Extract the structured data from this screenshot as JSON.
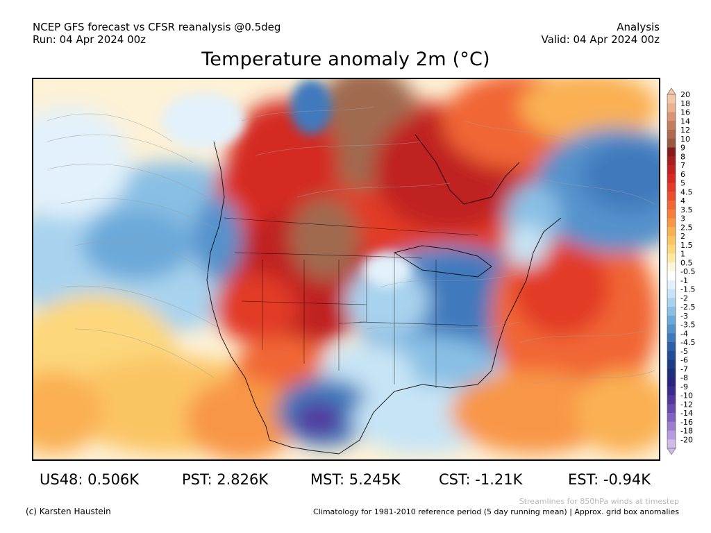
{
  "header": {
    "line1_left": "NCEP GFS forecast vs CFSR reanalysis @0.5deg",
    "line2_left": "Run: 04 Apr 2024 00z",
    "line1_right": "Analysis",
    "line2_right": "Valid: 04 Apr 2024 00z"
  },
  "title": "Temperature anomaly 2m (°C)",
  "colorbar": {
    "unit": "°C",
    "levels": [
      "20",
      "18",
      "16",
      "14",
      "12",
      "10",
      "9",
      "8",
      "7",
      "6",
      "5",
      "4.5",
      "4",
      "3.5",
      "3",
      "2.5",
      "2",
      "1.5",
      "1",
      "0.5",
      "-0.5",
      "-1",
      "-1.5",
      "-2",
      "-2.5",
      "-3",
      "-3.5",
      "-4",
      "-4.5",
      "-5",
      "-6",
      "-7",
      "-8",
      "-9",
      "-10",
      "-12",
      "-14",
      "-16",
      "-18",
      "-20"
    ],
    "colors": [
      "#f3c6a8",
      "#eab08f",
      "#d99473",
      "#c47c5e",
      "#ad6a4e",
      "#9a5a40",
      "#8a1a1a",
      "#a61e1e",
      "#c02222",
      "#d42a22",
      "#e23b28",
      "#ea4f2c",
      "#f16634",
      "#f57e3c",
      "#f89646",
      "#fab052",
      "#fbc463",
      "#fcd77c",
      "#fde9a4",
      "#fdf6dc",
      "#ffffff",
      "#e2f1fb",
      "#c6e4f5",
      "#a8d3ee",
      "#89bfe4",
      "#6ca9d9",
      "#5492cc",
      "#3f79bc",
      "#2f5fa8",
      "#234c96",
      "#1c3c86",
      "#1e2e7a",
      "#2a2480",
      "#3b2b8e",
      "#52389e",
      "#6a4aae",
      "#8262bf",
      "#9c7ecf",
      "#b69bdd",
      "#cfbaea"
    ]
  },
  "stats": [
    {
      "label": "US48: 0.506K"
    },
    {
      "label": "PST: 2.826K"
    },
    {
      "label": "MST: 5.245K"
    },
    {
      "label": "CST: -1.21K"
    },
    {
      "label": "EST: -0.94K"
    }
  ],
  "footer": {
    "credit": "(c) Karsten Haustein",
    "streamlines_note": "Streamlines for 850hPa winds at timestep",
    "climatology_note": "Climatology for 1981-2010 reference period (5 day running mean) | Approx. grid box anomalies"
  },
  "map": {
    "colors": {
      "deep_red": "#c0211f",
      "red": "#e23b28",
      "orange_red": "#f16634",
      "orange": "#f89646",
      "light_orange": "#fcd77c",
      "pale": "#fdf6dc",
      "very_light_blue": "#e2f1fb",
      "light_blue": "#a8d3ee",
      "mid_blue": "#6ca9d9",
      "blue": "#3f79bc",
      "dark_blue": "#234c96",
      "purple": "#52389e",
      "brown": "#a06a50"
    }
  }
}
